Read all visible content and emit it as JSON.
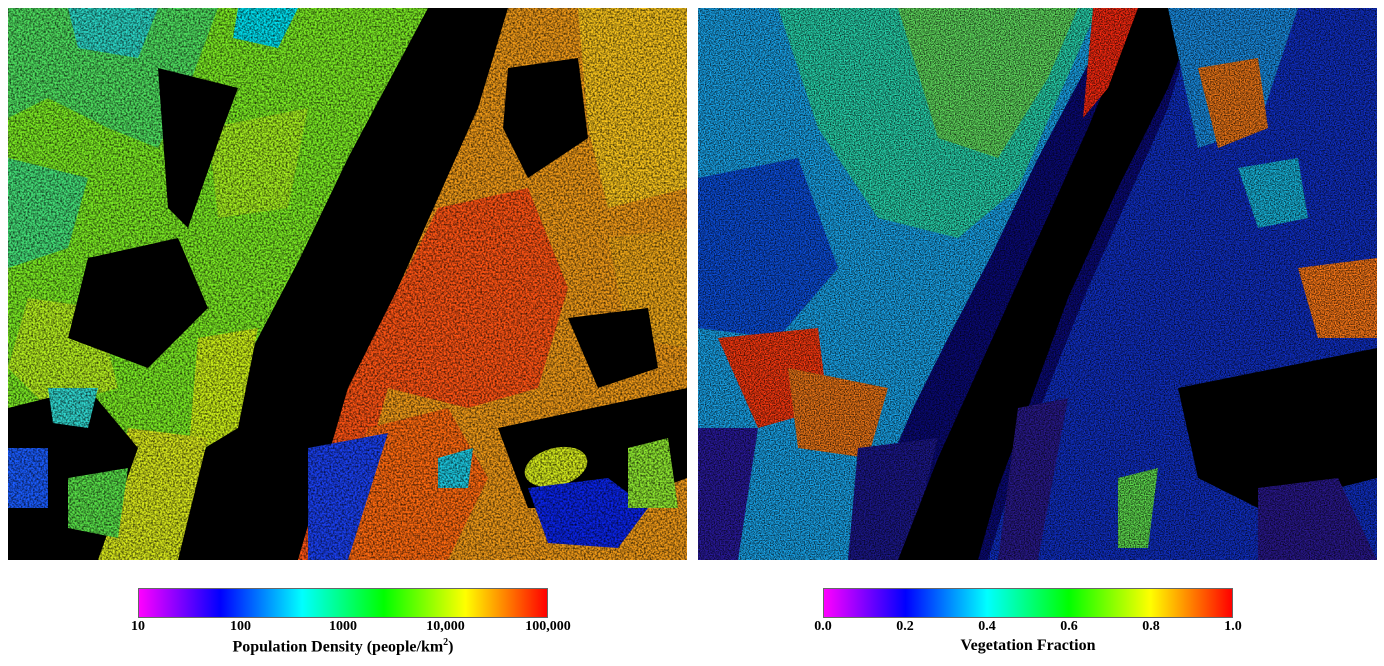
{
  "panels": {
    "left": {
      "content": "population-density-map"
    },
    "right": {
      "content": "vegetation-fraction-map"
    }
  },
  "legends": {
    "left": {
      "title_prefix": "Population Density (people/km",
      "title_sup": "2",
      "title_suffix": ")",
      "ticks": [
        "10",
        "100",
        "1000",
        "10,000",
        "100,000"
      ],
      "colors": [
        "#ff00ff",
        "#0000ff",
        "#00ffff",
        "#00ff00",
        "#ffff00",
        "#ff0000"
      ]
    },
    "right": {
      "title": "Vegetation Fraction",
      "ticks": [
        "0.0",
        "0.2",
        "0.4",
        "0.6",
        "0.8",
        "1.0"
      ],
      "colors": [
        "#ff00ff",
        "#0000ff",
        "#00ffff",
        "#00ff00",
        "#ffff00",
        "#ff0000"
      ]
    }
  }
}
